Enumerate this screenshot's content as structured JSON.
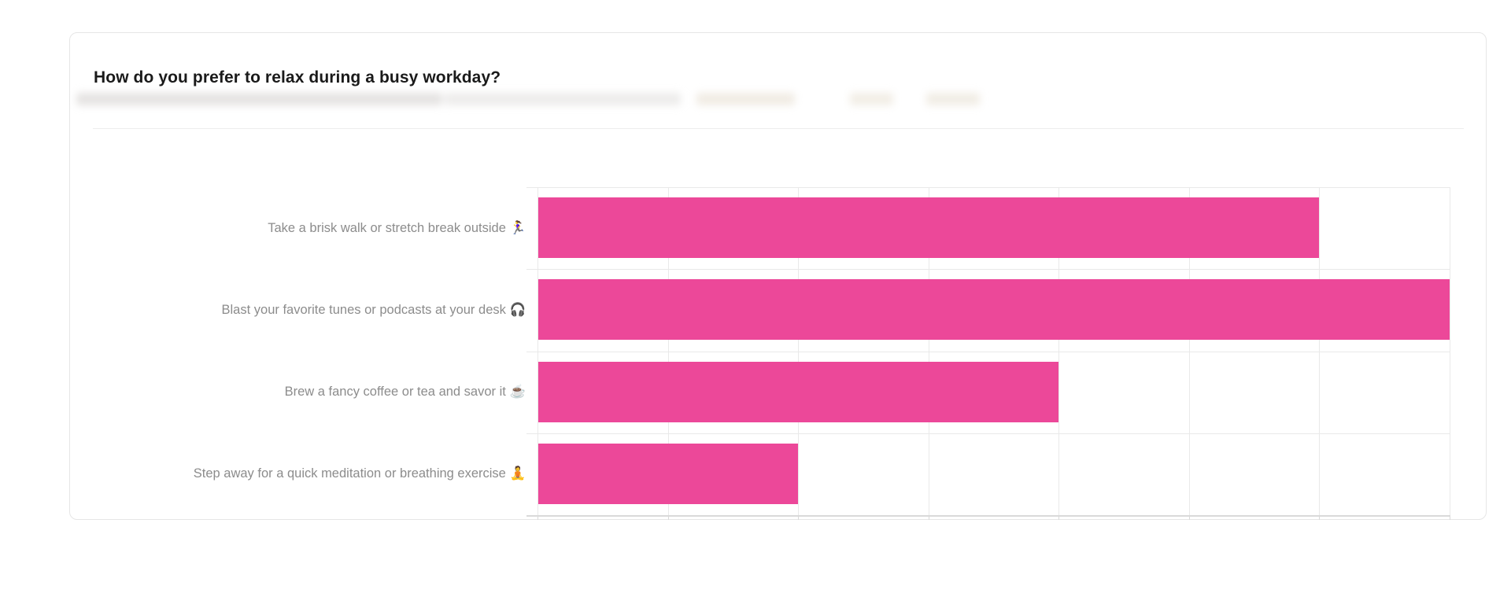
{
  "card": {
    "title": "How do you prefer to relax during a busy workday?",
    "subtitle_blurred": true
  },
  "chart_data": {
    "type": "bar",
    "orientation": "horizontal",
    "title": "How do you prefer to relax during a busy workday?",
    "categories": [
      "Take a brisk walk or stretch break outside 🏃‍♀️",
      "Blast your favorite tunes or podcasts at your desk 🎧",
      "Brew a fancy coffee or tea and savor it ☕",
      "Step away for a quick meditation or breathing exercise 🧘"
    ],
    "values": [
      6,
      7,
      4,
      2
    ],
    "xlabel": "",
    "ylabel": "",
    "xlim": [
      0,
      7
    ],
    "grid": true,
    "gridline_interval": 1,
    "x_tick_labels_visible": false,
    "value_labels_visible": false,
    "legend": "none",
    "bar_color": "#EC4899"
  },
  "colors": {
    "bar": "#EC4899",
    "title_text": "#1a1a1a",
    "category_label_text": "#8c8c8c",
    "gridline": "#e9e9e9",
    "axis_line": "#d9d9d9",
    "card_border": "#e6e6e6",
    "background": "#ffffff"
  }
}
